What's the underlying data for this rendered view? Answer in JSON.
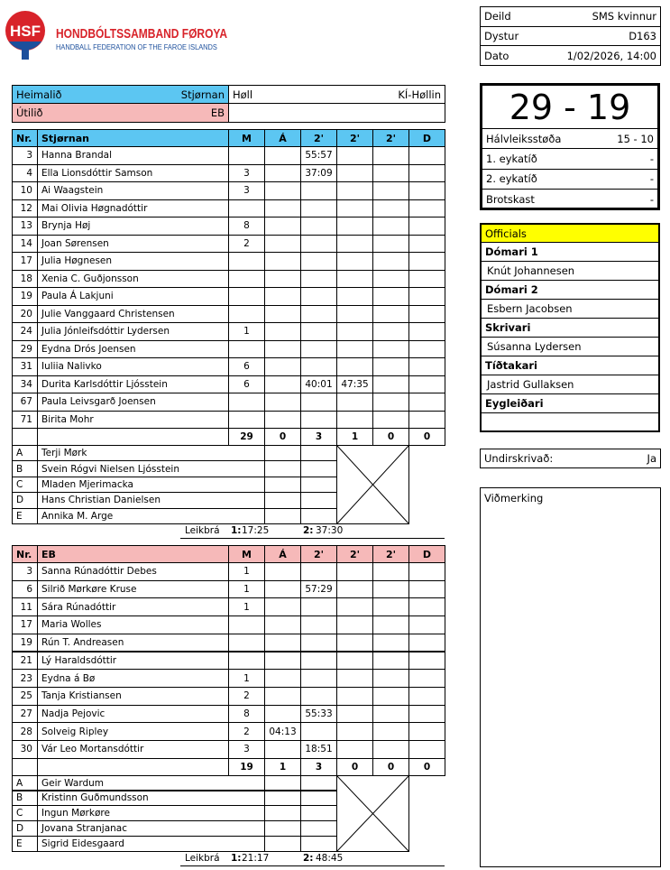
{
  "header": {
    "logo_text": "HSF",
    "title": "HONDBÓLTSSAMBAND FØROYA",
    "subtitle": "HANDBALL FEDERATION OF THE FAROE ISLANDS"
  },
  "match_info": [
    {
      "label": "Deild",
      "value": "SMS kvinnur"
    },
    {
      "label": "Dystur",
      "value": "D163"
    },
    {
      "label": "Dato",
      "value": "1/02/2026, 14:00"
    }
  ],
  "sides": {
    "home_label": "Heimalið",
    "home": "Stjørnan",
    "venue_label": "Høll",
    "venue": "KÍ-Høllin",
    "away_label": "Útilið",
    "away": "EB"
  },
  "score": {
    "result": "29 - 19",
    "rows": [
      {
        "label": "Hálvleiksstøða",
        "value": "15 - 10"
      },
      {
        "label": "1. eykatíð",
        "value": "-"
      },
      {
        "label": "2. eykatíð",
        "value": "-"
      },
      {
        "label": "Brotskast",
        "value": "-"
      }
    ]
  },
  "officials": {
    "title": "Officials",
    "roles": [
      {
        "role": "Dómari 1",
        "name": "Knút Johannesen"
      },
      {
        "role": "Dómari 2",
        "name": "Esbern Jacobsen"
      },
      {
        "role": "Skrivari",
        "name": "Súsanna Lydersen"
      },
      {
        "role": "Tíðtakari",
        "name": "Jastrid Gullaksen"
      },
      {
        "role": "Eygleiðari",
        "name": null
      }
    ]
  },
  "signed": {
    "label": "Undirskrivað:",
    "value": "Ja"
  },
  "remarks": {
    "label": "Viðmerking"
  },
  "teams": [
    {
      "columns": [
        "Nr.",
        "Stjørnan",
        "M",
        "Á",
        "2'",
        "2'",
        "2'",
        "D"
      ],
      "players": [
        [
          3,
          "Hanna Brandal",
          null,
          null,
          "55:57",
          null,
          null,
          null
        ],
        [
          4,
          "Ella Lionsdóttir Samson",
          3,
          null,
          "37:09",
          null,
          null,
          null
        ],
        [
          10,
          "Ai Waagstein",
          3,
          null,
          null,
          null,
          null,
          null
        ],
        [
          12,
          "Mai Olivia Høgnadóttir",
          null,
          null,
          null,
          null,
          null,
          null
        ],
        [
          13,
          "Brynja Høj",
          8,
          null,
          null,
          null,
          null,
          null
        ],
        [
          14,
          "Joan Sørensen",
          2,
          null,
          null,
          null,
          null,
          null
        ],
        [
          17,
          "Julia Høgnesen",
          null,
          null,
          null,
          null,
          null,
          null
        ],
        [
          18,
          "Xenia C. Guðjonsson",
          null,
          null,
          null,
          null,
          null,
          null
        ],
        [
          19,
          "Paula Á Lakjuni",
          null,
          null,
          null,
          null,
          null,
          null
        ],
        [
          20,
          "Julie Vanggaard Christensen",
          null,
          null,
          null,
          null,
          null,
          null
        ],
        [
          24,
          "Julia Jónleifsdóttir Lydersen",
          1,
          null,
          null,
          null,
          null,
          null
        ],
        [
          29,
          "Eydna Drós Joensen",
          null,
          null,
          null,
          null,
          null,
          null
        ],
        [
          31,
          "Iuliia Nalivko",
          6,
          null,
          null,
          null,
          null,
          null
        ],
        [
          34,
          "Durita Karlsdóttir Ljósstein",
          6,
          null,
          "40:01",
          "47:35",
          null,
          null
        ],
        [
          67,
          "Paula Leivsgarð Joensen",
          null,
          null,
          null,
          null,
          null,
          null
        ],
        [
          71,
          "Birita Mohr",
          null,
          null,
          null,
          null,
          null,
          null
        ]
      ],
      "totals": [
        29,
        0,
        3,
        1,
        0,
        0
      ],
      "staff": [
        [
          "A",
          "Terji Mørk"
        ],
        [
          "B",
          "Svein Rógvi Nielsen Ljósstein"
        ],
        [
          "C",
          "Mladen Mjerimacka"
        ],
        [
          "D",
          "Hans Christian Danielsen"
        ],
        [
          "E",
          "Annika M. Arge"
        ]
      ],
      "timeouts": {
        "label": "Leikbrá",
        "first_label": "1:",
        "first": "17:25",
        "second_label": "2:",
        "second": "37:30"
      }
    },
    {
      "columns": [
        "Nr.",
        "EB",
        "M",
        "Á",
        "2'",
        "2'",
        "2'",
        "D"
      ],
      "players": [
        [
          3,
          "Sanna Rúnadóttir Debes",
          1,
          null,
          null,
          null,
          null,
          null
        ],
        [
          6,
          "Silrið Mørkøre Kruse",
          1,
          null,
          "57:29",
          null,
          null,
          null
        ],
        [
          11,
          "Sára Rúnadóttir",
          1,
          null,
          null,
          null,
          null,
          null
        ],
        [
          17,
          "Maria Wolles",
          null,
          null,
          null,
          null,
          null,
          null
        ],
        [
          19,
          "Rún T. Andreasen",
          null,
          null,
          null,
          null,
          null,
          null
        ],
        [
          21,
          "Lý Haraldsdóttir",
          null,
          null,
          null,
          null,
          null,
          null
        ],
        [
          23,
          "Eydna á Bø",
          1,
          null,
          null,
          null,
          null,
          null
        ],
        [
          25,
          "Tanja Kristiansen",
          2,
          null,
          null,
          null,
          null,
          null
        ],
        [
          27,
          "Nadja Pejovic",
          8,
          null,
          "55:33",
          null,
          null,
          null
        ],
        [
          28,
          "Solveig Ripley",
          2,
          "04:13",
          null,
          null,
          null,
          null
        ],
        [
          30,
          "Vár Leo Mortansdóttir",
          3,
          null,
          "18:51",
          null,
          null,
          null
        ]
      ],
      "totals": [
        19,
        1,
        3,
        0,
        0,
        0
      ],
      "staff": [
        [
          "A",
          "Geir Wardum"
        ],
        [
          "B",
          "Kristinn Guðmundsson"
        ],
        [
          "C",
          "Ingun Mørkøre"
        ],
        [
          "D",
          "Jovana Stranjanac"
        ],
        [
          "E",
          "Sigrid Eidesgaard"
        ]
      ],
      "timeouts": {
        "label": "Leikbrá",
        "first_label": "1:",
        "first": "21:17",
        "second_label": "2:",
        "second": "48:45"
      }
    }
  ]
}
